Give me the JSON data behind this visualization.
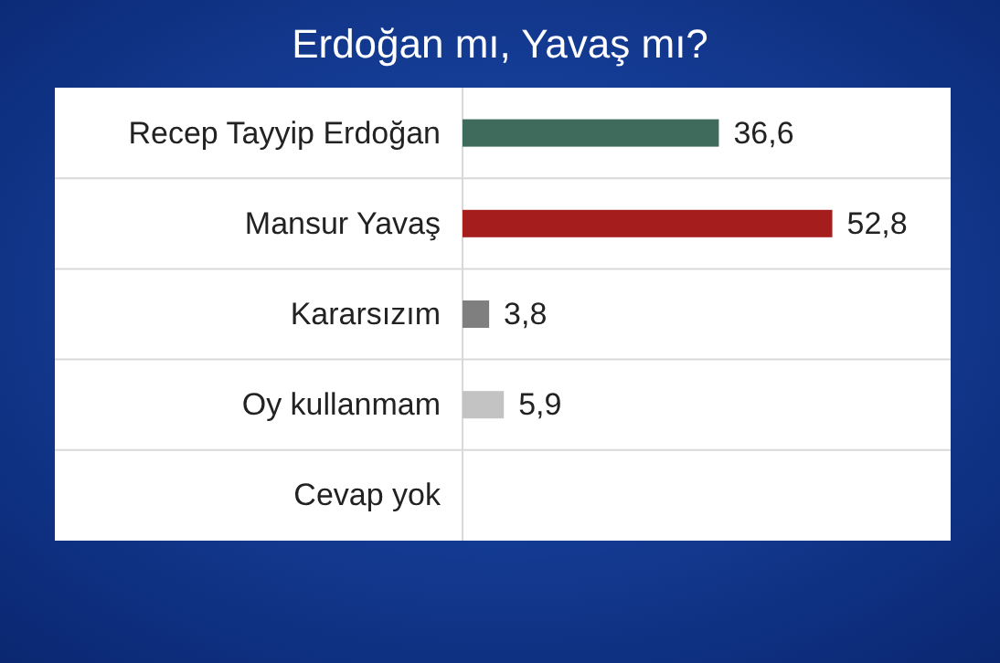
{
  "chart_data": {
    "type": "bar",
    "orientation": "horizontal",
    "title": "Erdoğan mı, Yavaş mı?",
    "categories": [
      "Recep Tayyip Erdoğan",
      "Mansur Yavaş",
      "Kararsızım",
      "Oy kullanmam",
      "Cevap yok"
    ],
    "values": [
      36.6,
      52.8,
      3.8,
      5.9,
      null
    ],
    "colors": [
      "#3f6b5d",
      "#a51d1d",
      "#7f7f7f",
      "#c3c3c3",
      null
    ],
    "value_labels": [
      "36,6",
      "52,8",
      "3,8",
      "5,9",
      null
    ],
    "grid": "y"
  }
}
